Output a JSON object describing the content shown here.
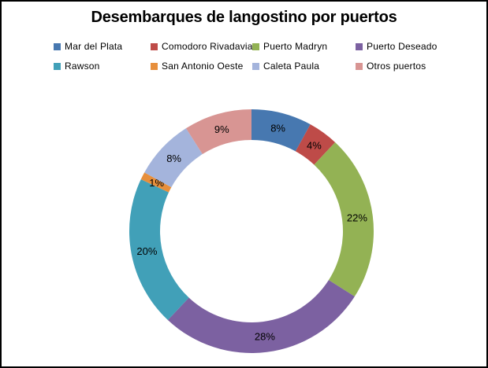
{
  "chart_data": {
    "type": "pie",
    "subtype": "donut",
    "title": "Desembarques de langostino por puertos",
    "unit": "%",
    "legend_position": "top",
    "direction": "clockwise",
    "start_angle_deg": 0,
    "total": 100,
    "series": [
      {
        "name": "Mar del Plata",
        "value": 8,
        "label": "8%",
        "color": "#4778B0"
      },
      {
        "name": "Comodoro Rivadavia",
        "value": 4,
        "label": "4%",
        "color": "#BE4B48"
      },
      {
        "name": "Puerto Madryn",
        "value": 22,
        "label": "22%",
        "color": "#93B254"
      },
      {
        "name": "Puerto Deseado",
        "value": 28,
        "label": "28%",
        "color": "#7C61A1"
      },
      {
        "name": "Rawson",
        "value": 20,
        "label": "20%",
        "color": "#41A0B8"
      },
      {
        "name": "San Antonio Oeste",
        "value": 1,
        "label": "1%",
        "color": "#E78F3C"
      },
      {
        "name": "Caleta Paula",
        "value": 8,
        "label": "8%",
        "color": "#A4B4DC"
      },
      {
        "name": "Otros puertos",
        "value": 9,
        "label": "9%",
        "color": "#D89593"
      }
    ]
  }
}
